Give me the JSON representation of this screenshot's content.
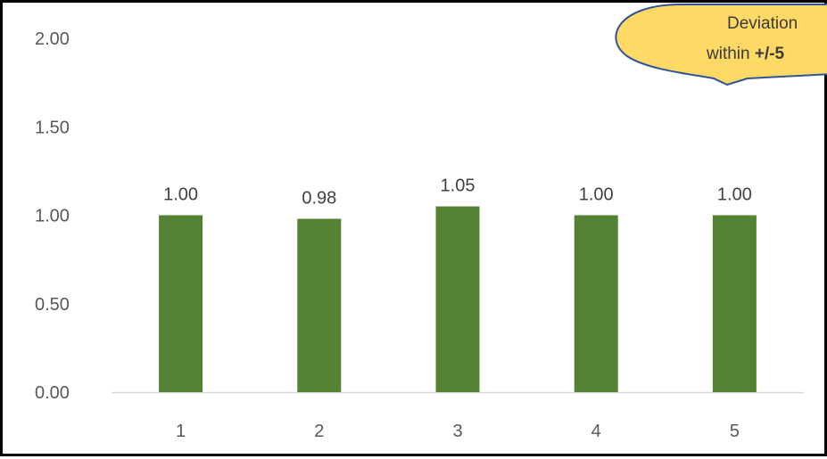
{
  "chart_data": {
    "type": "bar",
    "categories": [
      "1",
      "2",
      "3",
      "4",
      "5"
    ],
    "values": [
      1.0,
      0.98,
      1.05,
      1.0,
      1.0
    ],
    "data_labels": [
      "1.00",
      "0.98",
      "1.05",
      "1.00",
      "1.00"
    ],
    "y_ticks": [
      "0.00",
      "0.50",
      "1.00",
      "1.50",
      "2.00"
    ],
    "ylim": [
      0,
      2
    ],
    "title": "",
    "xlabel": "",
    "ylabel": "",
    "grid": false,
    "legend": "none",
    "bar_color": "#548235",
    "axis_color": "#d9d9d9",
    "annotation": {
      "line1": "Deviation",
      "line2_prefix": "within ",
      "line2_bold": "+/-5",
      "fill_color": "#ffd966",
      "border_color": "#2f5597"
    }
  }
}
